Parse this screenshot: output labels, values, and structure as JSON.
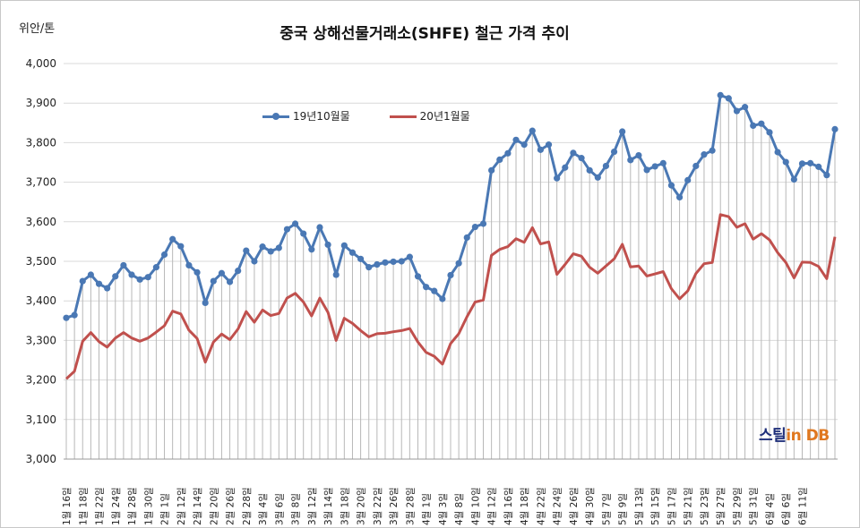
{
  "title": "중국 상해선물거래소(SHFE)  철근 가격 추이",
  "unit": "위안/톤",
  "watermark": {
    "brand": "스틸",
    "mid": "in",
    "suffix": " DB"
  },
  "colors": {
    "series1": "#4a78b4",
    "series2": "#c0504d",
    "drop": "#b8b8b8",
    "grid": "#d9d9d9"
  },
  "chart_data": {
    "type": "line",
    "title": "중국 상해선물거래소(SHFE)  철근 가격 추이",
    "ylabel": "위안/톤",
    "ylim": [
      3000,
      4000
    ],
    "yticks": [
      "3,000",
      "3,100",
      "3,200",
      "3,300",
      "3,400",
      "3,500",
      "3,600",
      "3,700",
      "3,800",
      "3,900",
      "4,000"
    ],
    "legend_position": "top-left",
    "drop_lines": true,
    "x_labels": [
      "1월 16일",
      "1월 18일",
      "1월 22일",
      "1월 24일",
      "1월 28일",
      "1월 30일",
      "2월 1일",
      "2월 12일",
      "2월 14일",
      "2월 20일",
      "2월 26일",
      "2월 28일",
      "3월 4일",
      "3월 6일",
      "3월 8일",
      "3월 12일",
      "3월 14일",
      "3월 18일",
      "3월 20일",
      "3월 22일",
      "3월 26일",
      "3월 28일",
      "4월 1일",
      "4월 3일",
      "4월 8일",
      "4월 10일",
      "4월 12일",
      "4월 16일",
      "4월 18일",
      "4월 22일",
      "4월 24일",
      "4월 26일",
      "4월 30일",
      "5월 7일",
      "5월 9일",
      "5월 13일",
      "5월 15일",
      "5월 17일",
      "5월 21일",
      "5월 23일",
      "5월 27일",
      "5월 29일",
      "5월 31일",
      "6월 4일",
      "6월 6일",
      "6월 11일"
    ],
    "series": [
      {
        "name": "19년10월물",
        "values": [
          3357,
          3364,
          3450,
          3466,
          3443,
          3432,
          3462,
          3490,
          3466,
          3454,
          3460,
          3485,
          3517,
          3556,
          3538,
          3490,
          3472,
          3395,
          3450,
          3470,
          3448,
          3476,
          3527,
          3500,
          3537,
          3525,
          3534,
          3581,
          3595,
          3570,
          3530,
          3586,
          3542,
          3466,
          3540,
          3522,
          3506,
          3485,
          3492,
          3497,
          3499,
          3500,
          3511,
          3462,
          3435,
          3425,
          3405,
          3465,
          3495,
          3560,
          3587,
          3595,
          3730,
          3757,
          3773,
          3807,
          3795,
          3830,
          3782,
          3795,
          3710,
          3737,
          3774,
          3761,
          3730,
          3712,
          3741,
          3777,
          3828,
          3756,
          3768,
          3731,
          3740,
          3748,
          3692,
          3662,
          3705,
          3741,
          3770,
          3780,
          3920,
          3912,
          3880,
          3890,
          3843,
          3848,
          3826,
          3776,
          3751,
          3707,
          3747,
          3748,
          3739,
          3718,
          3834
        ]
      },
      {
        "name": "20년1월물",
        "values": [
          3203,
          3222,
          3298,
          3320,
          3297,
          3283,
          3306,
          3320,
          3306,
          3298,
          3306,
          3321,
          3337,
          3374,
          3367,
          3326,
          3305,
          3245,
          3296,
          3316,
          3302,
          3329,
          3373,
          3346,
          3377,
          3363,
          3368,
          3407,
          3419,
          3397,
          3362,
          3407,
          3371,
          3300,
          3356,
          3343,
          3325,
          3309,
          3317,
          3318,
          3322,
          3325,
          3330,
          3296,
          3270,
          3260,
          3240,
          3292,
          3317,
          3360,
          3397,
          3402,
          3515,
          3530,
          3537,
          3557,
          3548,
          3585,
          3544,
          3549,
          3467,
          3492,
          3519,
          3513,
          3485,
          3470,
          3488,
          3506,
          3543,
          3486,
          3488,
          3463,
          3468,
          3474,
          3431,
          3405,
          3425,
          3469,
          3494,
          3497,
          3618,
          3613,
          3586,
          3595,
          3556,
          3570,
          3554,
          3522,
          3497,
          3458,
          3498,
          3497,
          3487,
          3456,
          3562
        ]
      }
    ]
  }
}
